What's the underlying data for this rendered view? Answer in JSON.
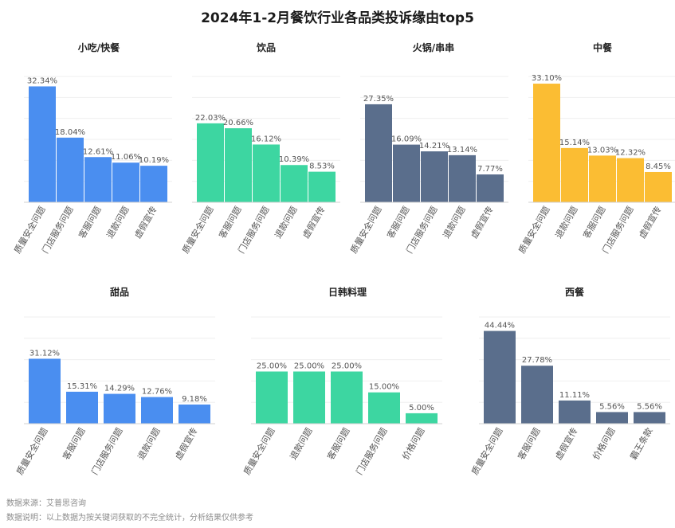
{
  "title": "2024年1-2月餐饮行业各品类投诉缘由top5",
  "footer": {
    "source": "数据来源：艾普思咨询",
    "note": "数据说明：以上数据为按关键词获取的不完全统计，分析结果仅供参考"
  },
  "chart_data": [
    {
      "type": "bar",
      "title": "小吃/快餐",
      "color": "#4a8ef0",
      "categories": [
        "质量安全问题",
        "门店服务问题",
        "客服问题",
        "退款问题",
        "虚假宣传"
      ],
      "values": [
        32.34,
        18.04,
        12.61,
        11.06,
        10.19
      ],
      "labels": [
        "32.34%",
        "18.04%",
        "12.61%",
        "11.06%",
        "10.19%"
      ],
      "ylim": [
        0,
        35
      ]
    },
    {
      "type": "bar",
      "title": "饮品",
      "color": "#3dd6a1",
      "categories": [
        "质量安全问题",
        "客服问题",
        "门店服务问题",
        "退款问题",
        "虚假宣传"
      ],
      "values": [
        22.03,
        20.66,
        16.12,
        10.39,
        8.53
      ],
      "labels": [
        "22.03%",
        "20.66%",
        "16.12%",
        "10.39%",
        "8.53%"
      ],
      "ylim": [
        0,
        35
      ]
    },
    {
      "type": "bar",
      "title": "火锅/串串",
      "color": "#5a6e8c",
      "categories": [
        "质量安全问题",
        "客服问题",
        "门店服务问题",
        "退款问题",
        "虚假宣传"
      ],
      "values": [
        27.35,
        16.09,
        14.21,
        13.14,
        7.77
      ],
      "labels": [
        "27.35%",
        "16.09%",
        "14.21%",
        "13.14%",
        "7.77%"
      ],
      "ylim": [
        0,
        35
      ]
    },
    {
      "type": "bar",
      "title": "中餐",
      "color": "#fbbd33",
      "categories": [
        "质量安全问题",
        "退款问题",
        "客服问题",
        "门店服务问题",
        "虚假宣传"
      ],
      "values": [
        33.1,
        15.14,
        13.03,
        12.32,
        8.45
      ],
      "labels": [
        "33.10%",
        "15.14%",
        "13.03%",
        "12.32%",
        "8.45%"
      ],
      "ylim": [
        0,
        35
      ]
    },
    {
      "type": "bar",
      "title": "甜品",
      "color": "#4a8ef0",
      "categories": [
        "质量安全问题",
        "客服问题",
        "门店服务问题",
        "退款问题",
        "虚假宣传"
      ],
      "values": [
        31.12,
        15.31,
        14.29,
        12.76,
        9.18
      ],
      "labels": [
        "31.12%",
        "15.31%",
        "14.29%",
        "12.76%",
        "9.18%"
      ],
      "ylim": [
        0,
        50
      ]
    },
    {
      "type": "bar",
      "title": "日韩料理",
      "color": "#3dd6a1",
      "categories": [
        "质量安全问题",
        "退款问题",
        "客服问题",
        "门店服务问题",
        "价格问题"
      ],
      "values": [
        25.0,
        25.0,
        25.0,
        15.0,
        5.0
      ],
      "labels": [
        "25.00%",
        "25.00%",
        "25.00%",
        "15.00%",
        "5.00%"
      ],
      "ylim": [
        0,
        50
      ]
    },
    {
      "type": "bar",
      "title": "西餐",
      "color": "#5a6e8c",
      "categories": [
        "质量安全问题",
        "客服问题",
        "虚假宣传",
        "价格问题",
        "霸王条款"
      ],
      "values": [
        44.44,
        27.78,
        11.11,
        5.56,
        5.56
      ],
      "labels": [
        "44.44%",
        "27.78%",
        "11.11%",
        "5.56%",
        "5.56%"
      ],
      "ylim": [
        0,
        50
      ]
    }
  ]
}
